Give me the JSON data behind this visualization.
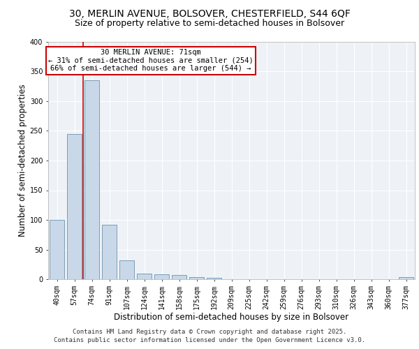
{
  "title_line1": "30, MERLIN AVENUE, BOLSOVER, CHESTERFIELD, S44 6QF",
  "title_line2": "Size of property relative to semi-detached houses in Bolsover",
  "xlabel": "Distribution of semi-detached houses by size in Bolsover",
  "ylabel": "Number of semi-detached properties",
  "categories": [
    "40sqm",
    "57sqm",
    "74sqm",
    "91sqm",
    "107sqm",
    "124sqm",
    "141sqm",
    "158sqm",
    "175sqm",
    "192sqm",
    "209sqm",
    "225sqm",
    "242sqm",
    "259sqm",
    "276sqm",
    "293sqm",
    "310sqm",
    "326sqm",
    "343sqm",
    "360sqm",
    "377sqm"
  ],
  "values": [
    100,
    245,
    335,
    92,
    32,
    10,
    8,
    7,
    4,
    2,
    0,
    0,
    0,
    0,
    0,
    0,
    0,
    0,
    0,
    0,
    3
  ],
  "bar_color": "#c8d8e8",
  "bar_edge_color": "#5580a0",
  "red_line_x": 1.5,
  "annotation_title": "30 MERLIN AVENUE: 71sqm",
  "annotation_line2": "← 31% of semi-detached houses are smaller (254)",
  "annotation_line3": "66% of semi-detached houses are larger (544) →",
  "annotation_box_color": "#ffffff",
  "annotation_box_edge": "#cc0000",
  "red_line_color": "#cc0000",
  "ylim": [
    0,
    400
  ],
  "yticks": [
    0,
    50,
    100,
    150,
    200,
    250,
    300,
    350,
    400
  ],
  "footer_line1": "Contains HM Land Registry data © Crown copyright and database right 2025.",
  "footer_line2": "Contains public sector information licensed under the Open Government Licence v3.0.",
  "bg_color": "#eef2f7",
  "grid_color": "#ffffff",
  "title_fontsize": 10,
  "subtitle_fontsize": 9,
  "axis_label_fontsize": 8.5,
  "tick_fontsize": 7,
  "annotation_fontsize": 7.5,
  "footer_fontsize": 6.5
}
